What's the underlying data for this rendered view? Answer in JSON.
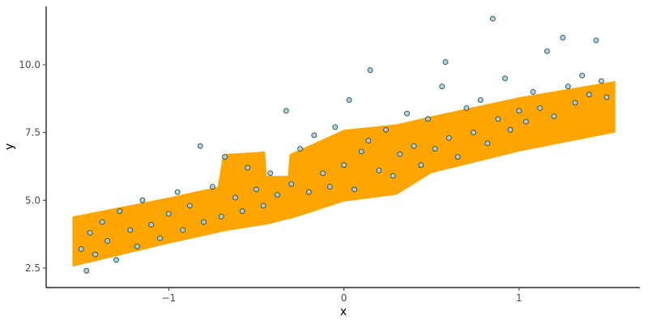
{
  "chart_data": {
    "type": "scatter",
    "x_label": "x",
    "y_label": "y",
    "xlim": [
      -1.7,
      1.69
    ],
    "ylim": [
      1.78,
      12.15
    ],
    "xticks": [
      {
        "value": -1,
        "label": "−1"
      },
      0,
      1
    ],
    "yticks": [
      {
        "value": 2.5,
        "label": "2.5"
      },
      {
        "value": 5,
        "label": "5.0"
      },
      {
        "value": 7.5,
        "label": "7.5"
      },
      {
        "value": 10,
        "label": "10.0"
      }
    ],
    "band": {
      "color": "#ffa500",
      "x": [
        -1.55,
        -1.0,
        -0.72,
        -0.69,
        -0.45,
        -0.44,
        -0.32,
        -0.31,
        0.0,
        0.3,
        0.5,
        1.0,
        1.55
      ],
      "upper": [
        4.4,
        5.1,
        5.5,
        6.7,
        6.8,
        5.9,
        5.9,
        6.7,
        7.6,
        7.8,
        8.1,
        8.8,
        9.4
      ],
      "lower": [
        2.55,
        3.4,
        3.8,
        3.85,
        4.1,
        4.1,
        4.3,
        4.3,
        4.95,
        5.2,
        6.0,
        6.8,
        7.5
      ]
    },
    "point_color": "#a6cee3",
    "x": [
      -1.5,
      -1.47,
      -1.45,
      -1.42,
      -1.38,
      -1.35,
      -1.3,
      -1.28,
      -1.22,
      -1.18,
      -1.15,
      -1.1,
      -1.05,
      -1.0,
      -0.95,
      -0.92,
      -0.88,
      -0.82,
      -0.8,
      -0.75,
      -0.7,
      -0.68,
      -0.62,
      -0.58,
      -0.55,
      -0.5,
      -0.46,
      -0.42,
      -0.38,
      -0.33,
      -0.3,
      -0.25,
      -0.2,
      -0.17,
      -0.12,
      -0.08,
      -0.05,
      0.0,
      0.03,
      0.06,
      0.1,
      0.14,
      0.15,
      0.2,
      0.24,
      0.28,
      0.32,
      0.36,
      0.4,
      0.44,
      0.48,
      0.52,
      0.56,
      0.58,
      0.6,
      0.65,
      0.7,
      0.74,
      0.78,
      0.82,
      0.85,
      0.88,
      0.92,
      0.95,
      1.0,
      1.04,
      1.08,
      1.12,
      1.16,
      1.2,
      1.25,
      1.28,
      1.32,
      1.36,
      1.4,
      1.44,
      1.47,
      1.5
    ],
    "values": [
      3.2,
      2.4,
      3.8,
      3.0,
      4.2,
      3.5,
      2.8,
      4.6,
      3.9,
      3.3,
      5.0,
      4.1,
      3.6,
      4.5,
      5.3,
      3.9,
      4.8,
      7.0,
      4.2,
      5.5,
      4.4,
      6.6,
      5.1,
      4.6,
      6.2,
      5.4,
      4.8,
      6.0,
      5.2,
      8.3,
      5.6,
      6.9,
      5.3,
      7.4,
      6.0,
      5.5,
      7.7,
      6.3,
      8.7,
      5.4,
      6.8,
      7.2,
      9.8,
      6.1,
      7.6,
      5.9,
      6.7,
      8.2,
      7.0,
      6.3,
      8.0,
      6.9,
      9.2,
      10.1,
      7.3,
      6.6,
      8.4,
      7.5,
      8.7,
      7.1,
      11.7,
      8.0,
      9.5,
      7.6,
      8.3,
      7.9,
      9.0,
      8.4,
      10.5,
      8.1,
      11.0,
      9.2,
      8.6,
      9.6,
      8.9,
      10.9,
      9.4,
      8.8
    ]
  }
}
